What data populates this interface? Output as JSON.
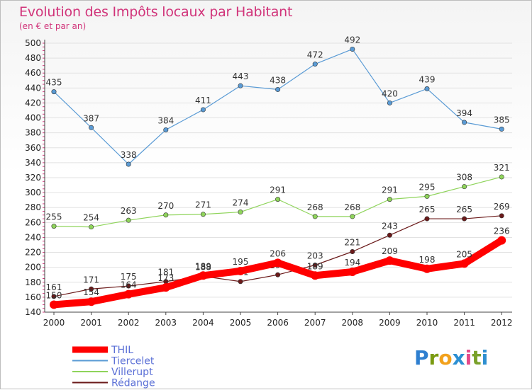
{
  "header": {
    "title": "Evolution des Impôts locaux par Habitant",
    "subtitle": "(en € et par an)"
  },
  "logo": {
    "letters": [
      "P",
      "r",
      "o",
      "x",
      "i",
      "t",
      "i"
    ],
    "colors": [
      "#2e7fd0",
      "#7a9a10",
      "#f2a11c",
      "#2c8fd2",
      "#e54a8a",
      "#7aa12a",
      "#2e8fd0"
    ]
  },
  "chart_data": {
    "type": "line",
    "title": "Evolution des Impôts locaux par Habitant",
    "subtitle": "(en € et par an)",
    "xlabel": "",
    "ylabel": "",
    "x": [
      "2000",
      "2001",
      "2002",
      "2003",
      "2004",
      "2005",
      "2006",
      "2007",
      "2008",
      "2009",
      "2010",
      "2011",
      "2012"
    ],
    "ylim": [
      140,
      500
    ],
    "yticks": [
      "140",
      "160",
      "180",
      "200",
      "220",
      "240",
      "260",
      "280",
      "300",
      "320",
      "340",
      "360",
      "380",
      "400",
      "420",
      "440",
      "460",
      "480",
      "500"
    ],
    "grid": "horizontal",
    "legend_position": "bottom-left",
    "series": [
      {
        "name": "Tiercelet",
        "color": "#5a9bd5",
        "values": [
          435,
          387,
          338,
          384,
          411,
          443,
          438,
          472,
          492,
          420,
          439,
          394,
          385
        ],
        "labels": [
          "435",
          "387",
          "338",
          "384",
          "411",
          "443",
          "438",
          "472",
          "492",
          "420",
          "439",
          "394",
          "385"
        ]
      },
      {
        "name": "Villerupt",
        "color": "#8fd45b",
        "values": [
          255,
          254,
          263,
          270,
          271,
          274,
          291,
          268,
          268,
          291,
          295,
          308,
          321
        ],
        "labels": [
          "255",
          "254",
          "263",
          "270",
          "271",
          "274",
          "291",
          "268",
          "268",
          "291",
          "295",
          "308",
          "321"
        ]
      },
      {
        "name": "Rédange",
        "color": "#6b1a1a",
        "values": [
          161,
          171,
          175,
          181,
          188,
          181,
          190,
          203,
          221,
          243,
          265,
          265,
          269
        ],
        "labels": [
          "161",
          "171",
          "175",
          "181",
          "188",
          "181",
          "190",
          "203",
          "221",
          "243",
          "265",
          "265",
          "269"
        ]
      },
      {
        "name": "THIL",
        "color": "#ff0000",
        "values": [
          150,
          154,
          164,
          173,
          189,
          195,
          206,
          189,
          194,
          209,
          198,
          205,
          236
        ],
        "labels": [
          "150",
          "154",
          "164",
          "173",
          "189",
          "195",
          "206",
          "189",
          "194",
          "209",
          "198",
          "205",
          "236"
        ]
      }
    ],
    "legend": [
      {
        "name": "THIL",
        "color": "#ff0000"
      },
      {
        "name": "Tiercelet",
        "color": "#5a9bd5"
      },
      {
        "name": "Villerupt",
        "color": "#8fd45b"
      },
      {
        "name": "Rédange",
        "color": "#6b1a1a"
      }
    ]
  }
}
